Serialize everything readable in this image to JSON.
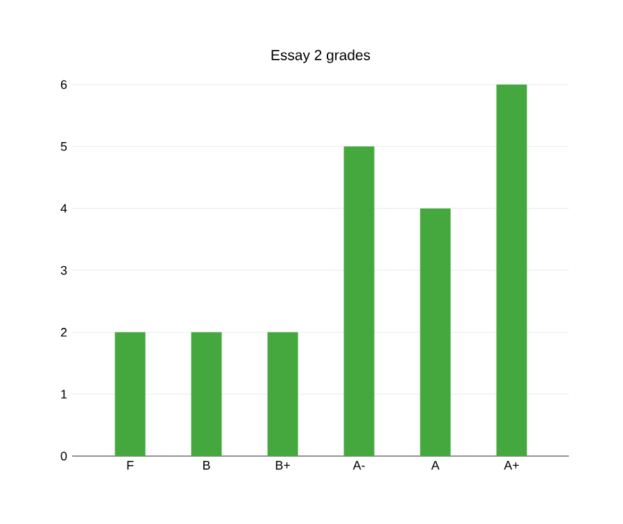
{
  "chart_data": {
    "type": "bar",
    "title": "Essay 2 grades",
    "categories": [
      "F",
      "B",
      "B+",
      "A-",
      "A",
      "A+"
    ],
    "values": [
      2,
      2,
      2,
      5,
      4,
      6
    ],
    "color": "#45a83f",
    "ylim": [
      0,
      6
    ],
    "yticks": [
      0,
      1,
      2,
      3,
      4,
      5,
      6
    ],
    "grid": "y"
  }
}
